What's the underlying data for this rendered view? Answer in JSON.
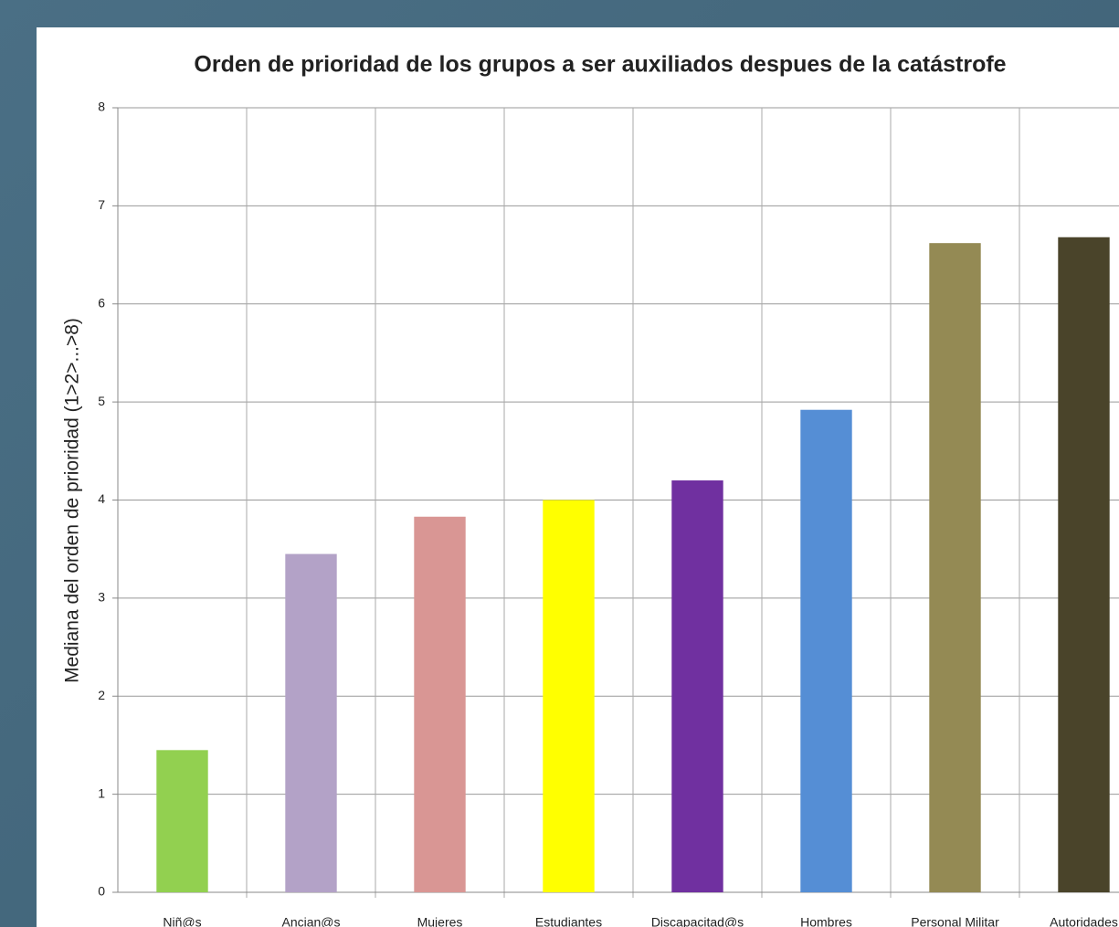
{
  "chart_data": {
    "type": "bar",
    "title": "Orden de prioridad  de los grupos a ser auxiliados despues de la catástrofe",
    "y_label": "Mediana del orden de prioridad (1>2>...>8)",
    "categories": [
      "Niñ@s",
      "Ancian@s",
      "Mujeres",
      "Estudiantes",
      "Discapacitad@s",
      "Hombres",
      "Personal Militar",
      "Autoridades"
    ],
    "values": [
      1.45,
      3.45,
      3.83,
      4.0,
      4.2,
      4.92,
      6.62,
      6.68
    ],
    "colors": [
      "#92d050",
      "#b3a2c7",
      "#d99694",
      "#ffff00",
      "#7030a0",
      "#558ed5",
      "#948a54",
      "#4a442a"
    ],
    "ylim": [
      0,
      8
    ],
    "yticks": [
      0,
      1,
      2,
      3,
      4,
      5,
      6,
      7,
      8
    ],
    "grid": true
  }
}
